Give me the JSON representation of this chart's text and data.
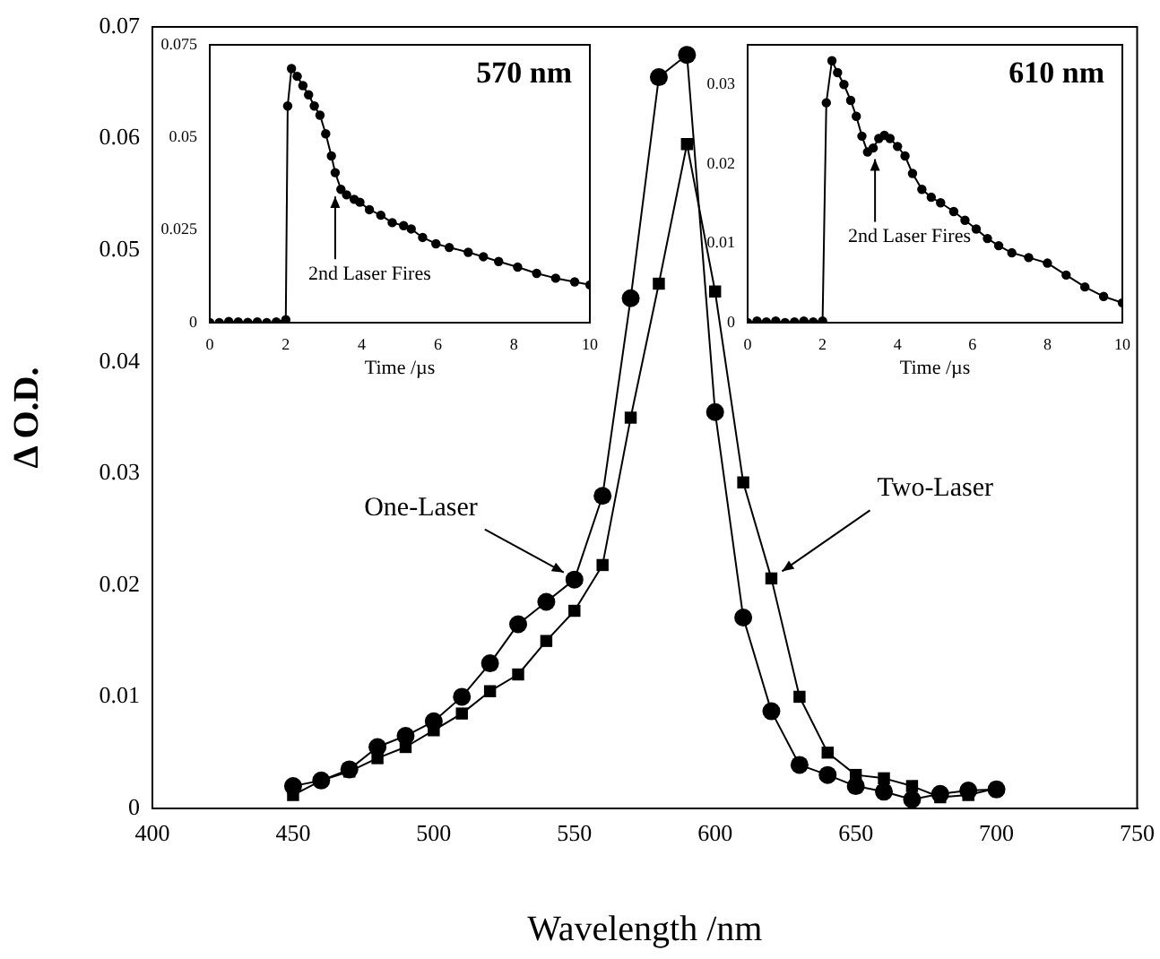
{
  "chart_data": [
    {
      "type": "line",
      "xlabel": "Wavelength /nm",
      "ylabel": "Δ O.D.",
      "x": [
        450,
        460,
        470,
        480,
        490,
        500,
        510,
        520,
        530,
        540,
        550,
        560,
        570,
        580,
        590,
        600,
        610,
        620,
        630,
        640,
        650,
        660,
        670,
        680,
        690,
        700
      ],
      "xlim": [
        400,
        750
      ],
      "xticks": [
        400,
        450,
        500,
        550,
        600,
        650,
        700,
        750
      ],
      "ylim": [
        0,
        0.07
      ],
      "yticks": [
        0,
        0.01,
        0.02,
        0.03,
        0.04,
        0.05,
        0.06,
        0.07
      ],
      "series": [
        {
          "name": "One-Laser",
          "color": "#000000",
          "marker": "circle",
          "values": [
            0.002,
            0.0025,
            0.0035,
            0.0055,
            0.0065,
            0.0078,
            0.01,
            0.013,
            0.0165,
            0.0185,
            0.0205,
            0.028,
            0.0457,
            0.0655,
            0.0675,
            0.0355,
            0.0171,
            0.0087,
            0.0039,
            0.003,
            0.002,
            0.0015,
            0.0008,
            0.0013,
            0.0016,
            0.0017
          ]
        },
        {
          "name": "Two-Laser",
          "color": "#000000",
          "marker": "square",
          "values": [
            0.0012,
            0.0025,
            0.0033,
            0.0045,
            0.0055,
            0.007,
            0.0085,
            0.0105,
            0.012,
            0.015,
            0.0177,
            0.0218,
            0.035,
            0.047,
            0.0595,
            0.0463,
            0.0292,
            0.0206,
            0.01,
            0.005,
            0.003,
            0.0027,
            0.002,
            0.001,
            0.0012,
            0.0018
          ]
        }
      ]
    },
    {
      "type": "line",
      "xlabel": "Time /µs",
      "xlim": [
        0,
        10
      ],
      "xticks": [
        0,
        2,
        4,
        6,
        8,
        10
      ],
      "ylim": [
        0,
        0.075
      ],
      "yticks": [
        0,
        0.025,
        0.05,
        0.075
      ],
      "annotations": [
        "570 nm",
        {
          "text": "2nd Laser Fires",
          "x": 3.3,
          "y": 0.036
        }
      ],
      "series": [
        {
          "color": "#000000",
          "marker": "circle",
          "x": [
            0,
            0.25,
            0.5,
            0.75,
            1,
            1.25,
            1.5,
            1.75,
            2.0,
            2.05,
            2.15,
            2.3,
            2.45,
            2.6,
            2.75,
            2.9,
            3.05,
            3.2,
            3.3,
            3.45,
            3.6,
            3.8,
            3.95,
            4.2,
            4.5,
            4.8,
            5.1,
            5.3,
            5.6,
            5.95,
            6.3,
            6.8,
            7.2,
            7.6,
            8.1,
            8.6,
            9.1,
            9.6,
            10
          ],
          "values": [
            0,
            0,
            0.0003,
            0.0002,
            0.0001,
            0.0002,
            0,
            0.0002,
            0.0008,
            0.0585,
            0.0686,
            0.0665,
            0.064,
            0.0615,
            0.0585,
            0.056,
            0.051,
            0.045,
            0.0405,
            0.036,
            0.0345,
            0.0333,
            0.0325,
            0.0305,
            0.029,
            0.027,
            0.0262,
            0.0253,
            0.023,
            0.0213,
            0.0203,
            0.019,
            0.0178,
            0.0165,
            0.015,
            0.0133,
            0.012,
            0.011,
            0.0102
          ]
        }
      ]
    },
    {
      "type": "line",
      "xlabel": "Time /µs",
      "xlim": [
        0,
        10
      ],
      "xticks": [
        0,
        2,
        4,
        6,
        8,
        10
      ],
      "ylim": [
        0,
        0.035
      ],
      "yticks": [
        0,
        0.01,
        0.02,
        0.03
      ],
      "annotations": [
        "610 nm",
        {
          "text": "2nd Laser Fires",
          "x": 3.4,
          "y": 0.0215
        }
      ],
      "series": [
        {
          "color": "#000000",
          "marker": "circle",
          "x": [
            0,
            0.25,
            0.5,
            0.75,
            1,
            1.25,
            1.5,
            1.75,
            2.0,
            2.1,
            2.25,
            2.4,
            2.57,
            2.75,
            2.9,
            3.05,
            3.2,
            3.35,
            3.5,
            3.65,
            3.8,
            4.0,
            4.2,
            4.4,
            4.65,
            4.9,
            5.15,
            5.5,
            5.8,
            6.1,
            6.4,
            6.7,
            7.05,
            7.5,
            8.0,
            8.5,
            9.0,
            9.5,
            10
          ],
          "values": [
            0,
            0.0002,
            0.0001,
            0.0002,
            0,
            0.0001,
            0.0002,
            0.0001,
            0.0002,
            0.0277,
            0.033,
            0.0315,
            0.03,
            0.028,
            0.026,
            0.0235,
            0.0215,
            0.022,
            0.0232,
            0.0236,
            0.0232,
            0.0222,
            0.021,
            0.0188,
            0.0168,
            0.0158,
            0.0151,
            0.014,
            0.0129,
            0.0118,
            0.0106,
            0.0097,
            0.0088,
            0.0082,
            0.0075,
            0.006,
            0.0045,
            0.0033,
            0.0025
          ]
        }
      ]
    }
  ]
}
